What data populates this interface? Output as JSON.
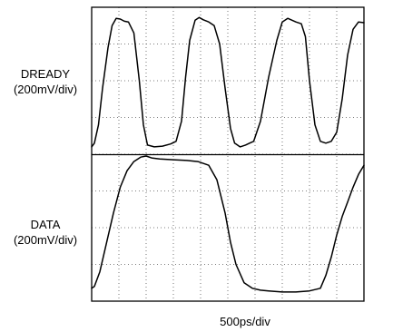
{
  "chart_data": {
    "type": "line",
    "xlabel": "500ps/div",
    "x_divisions": 10,
    "y_divisions": 8,
    "grid": true,
    "colors": {
      "trace": "#000000",
      "grid": "#555555",
      "frame": "#000000"
    },
    "series": [
      {
        "name": "DREADY",
        "unit": "(200mV/div)",
        "x": [
          0,
          0.1,
          0.25,
          0.4,
          0.6,
          0.75,
          0.9,
          1.05,
          1.2,
          1.35,
          1.55,
          1.75,
          1.9,
          2.05,
          2.3,
          2.6,
          2.9,
          3.1,
          3.3,
          3.45,
          3.6,
          3.8,
          3.95,
          4.1,
          4.3,
          4.5,
          4.7,
          4.9,
          5.1,
          5.25,
          5.45,
          5.65,
          5.8,
          5.95,
          6.2,
          6.5,
          6.8,
          7.0,
          7.2,
          7.35,
          7.5,
          7.7,
          7.85,
          8.0,
          8.2,
          8.4,
          8.6,
          8.8,
          9.0,
          9.2,
          9.4,
          9.6,
          9.8,
          10.0
        ],
        "y": [
          0.2,
          0.3,
          0.8,
          1.8,
          2.9,
          3.5,
          3.7,
          3.68,
          3.62,
          3.6,
          3.3,
          2.0,
          0.8,
          0.25,
          0.2,
          0.22,
          0.28,
          0.35,
          0.9,
          2.1,
          3.1,
          3.65,
          3.72,
          3.66,
          3.6,
          3.5,
          3.0,
          1.8,
          0.7,
          0.3,
          0.2,
          0.25,
          0.3,
          0.35,
          0.9,
          2.1,
          3.1,
          3.6,
          3.7,
          3.65,
          3.6,
          3.55,
          3.2,
          2.0,
          0.8,
          0.35,
          0.3,
          0.35,
          0.6,
          1.5,
          2.7,
          3.4,
          3.6,
          3.58
        ]
      },
      {
        "name": "DATA",
        "unit": "(200mV/div)",
        "x": [
          0,
          0.1,
          0.3,
          0.55,
          0.8,
          1.05,
          1.3,
          1.55,
          1.8,
          2.0,
          2.2,
          2.5,
          3.0,
          3.5,
          3.9,
          4.3,
          4.6,
          4.9,
          5.1,
          5.3,
          5.6,
          5.9,
          6.2,
          6.5,
          7.0,
          7.5,
          8.0,
          8.4,
          8.6,
          8.8,
          9.0,
          9.2,
          9.4,
          9.6,
          9.8,
          10.0
        ],
        "y": [
          -3.65,
          -3.6,
          -3.2,
          -2.4,
          -1.6,
          -0.9,
          -0.45,
          -0.2,
          -0.08,
          -0.05,
          -0.1,
          -0.13,
          -0.15,
          -0.17,
          -0.2,
          -0.3,
          -0.7,
          -1.6,
          -2.4,
          -3.0,
          -3.5,
          -3.65,
          -3.7,
          -3.72,
          -3.75,
          -3.75,
          -3.72,
          -3.65,
          -3.3,
          -2.8,
          -2.2,
          -1.7,
          -1.3,
          -0.9,
          -0.55,
          -0.3
        ]
      }
    ]
  }
}
